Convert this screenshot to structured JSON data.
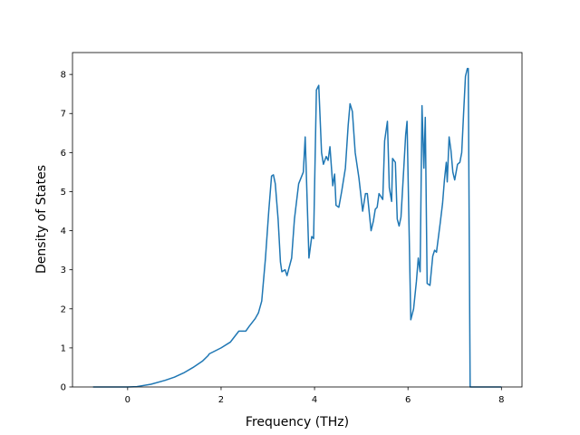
{
  "chart_data": {
    "type": "line",
    "x_label": "Frequency (THz)",
    "y_label": "Density of States",
    "x": [
      -0.74,
      0,
      0.2,
      0.5,
      0.8,
      1.0,
      1.2,
      1.4,
      1.6,
      1.72,
      1.75,
      2.0,
      2.2,
      2.38,
      2.53,
      2.6,
      2.73,
      2.8,
      2.87,
      2.95,
      3.02,
      3.08,
      3.12,
      3.16,
      3.22,
      3.27,
      3.3,
      3.37,
      3.41,
      3.51,
      3.57,
      3.66,
      3.76,
      3.8,
      3.88,
      3.94,
      3.98,
      4.04,
      4.09,
      4.15,
      4.19,
      4.25,
      4.29,
      4.33,
      4.39,
      4.43,
      4.46,
      4.52,
      4.58,
      4.66,
      4.72,
      4.76,
      4.81,
      4.87,
      4.95,
      5.03,
      5.09,
      5.13,
      5.21,
      5.26,
      5.3,
      5.34,
      5.38,
      5.46,
      5.5,
      5.56,
      5.6,
      5.65,
      5.67,
      5.73,
      5.77,
      5.81,
      5.85,
      5.91,
      5.95,
      5.98,
      6.06,
      6.12,
      6.18,
      6.22,
      6.26,
      6.3,
      6.34,
      6.37,
      6.41,
      6.47,
      6.53,
      6.57,
      6.61,
      6.69,
      6.74,
      6.78,
      6.82,
      6.84,
      6.88,
      6.92,
      6.96,
      7.0,
      7.06,
      7.11,
      7.15,
      7.19,
      7.23,
      7.27,
      7.29,
      7.33,
      8.0
    ],
    "series": [
      {
        "color": "#1f77b4",
        "values": [
          0,
          0,
          0.01,
          0.07,
          0.17,
          0.25,
          0.36,
          0.5,
          0.66,
          0.8,
          0.85,
          1.0,
          1.15,
          1.43,
          1.43,
          1.55,
          1.75,
          1.9,
          2.2,
          3.3,
          4.5,
          5.4,
          5.43,
          5.2,
          4.3,
          3.2,
          2.95,
          3.0,
          2.85,
          3.3,
          4.3,
          5.2,
          5.5,
          6.4,
          3.3,
          3.85,
          3.8,
          7.6,
          7.72,
          6.0,
          5.7,
          5.9,
          5.8,
          6.15,
          5.15,
          5.45,
          4.65,
          4.6,
          5.0,
          5.6,
          6.7,
          7.25,
          7.05,
          6.0,
          5.35,
          4.5,
          4.95,
          4.95,
          4.0,
          4.25,
          4.55,
          4.6,
          4.95,
          4.8,
          6.3,
          6.8,
          5.1,
          4.75,
          5.85,
          5.75,
          4.3,
          4.12,
          4.35,
          5.6,
          6.45,
          6.8,
          1.72,
          2.0,
          2.7,
          3.3,
          2.95,
          7.2,
          5.6,
          6.9,
          2.65,
          2.6,
          3.35,
          3.5,
          3.45,
          4.2,
          4.7,
          5.3,
          5.75,
          5.25,
          6.4,
          6.05,
          5.5,
          5.3,
          5.7,
          5.75,
          6.0,
          7.0,
          7.95,
          8.15,
          8.15,
          0,
          0
        ]
      }
    ],
    "xlim": [
      -1.18,
      8.44
    ],
    "ylim": [
      0,
      8.56
    ],
    "xticks": [
      0,
      2,
      4,
      6,
      8
    ],
    "yticks": [
      0,
      1,
      2,
      3,
      4,
      5,
      6,
      7,
      8
    ]
  }
}
